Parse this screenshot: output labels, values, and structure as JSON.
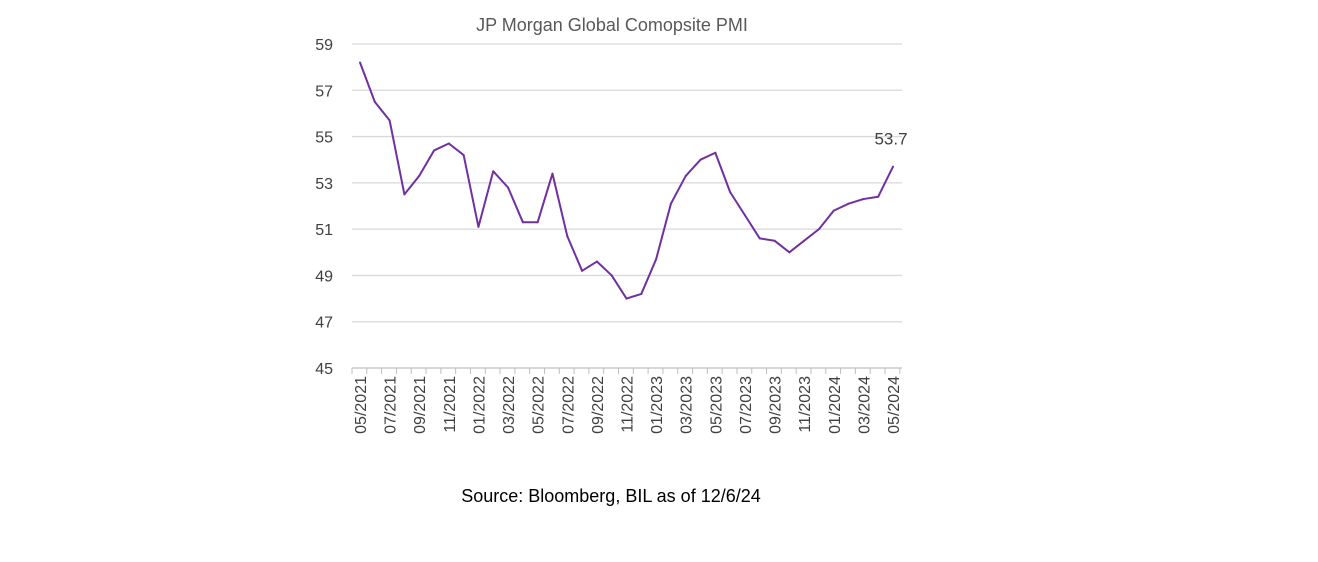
{
  "chart_data": {
    "type": "line",
    "title": "JP Morgan Global Comopsite PMI",
    "xlabel": "",
    "ylabel": "",
    "ylim": [
      45,
      59
    ],
    "yticks": [
      45,
      47,
      49,
      51,
      53,
      55,
      57,
      59
    ],
    "x": [
      "05/2021",
      "06/2021",
      "07/2021",
      "08/2021",
      "09/2021",
      "10/2021",
      "11/2021",
      "12/2021",
      "01/2022",
      "02/2022",
      "03/2022",
      "04/2022",
      "05/2022",
      "06/2022",
      "07/2022",
      "08/2022",
      "09/2022",
      "10/2022",
      "11/2022",
      "12/2022",
      "01/2023",
      "02/2023",
      "03/2023",
      "04/2023",
      "05/2023",
      "06/2023",
      "07/2023",
      "08/2023",
      "09/2023",
      "10/2023",
      "11/2023",
      "12/2023",
      "01/2024",
      "02/2024",
      "03/2024",
      "04/2024",
      "05/2024"
    ],
    "xtick_labels": [
      "05/2021",
      "07/2021",
      "09/2021",
      "11/2021",
      "01/2022",
      "03/2022",
      "05/2022",
      "07/2022",
      "09/2022",
      "11/2022",
      "01/2023",
      "03/2023",
      "05/2023",
      "07/2023",
      "09/2023",
      "11/2023",
      "01/2024",
      "03/2024",
      "05/2024"
    ],
    "series": [
      {
        "values": [
          58.2,
          56.5,
          55.7,
          52.5,
          53.3,
          54.4,
          54.7,
          54.2,
          51.1,
          53.5,
          52.8,
          51.3,
          51.3,
          53.4,
          50.7,
          49.2,
          49.6,
          49.0,
          48.0,
          48.2,
          49.7,
          52.1,
          53.3,
          54.0,
          54.3,
          52.6,
          51.6,
          50.6,
          50.5,
          50.0,
          50.5,
          51.0,
          51.8,
          52.1,
          52.3,
          52.4,
          53.7
        ],
        "color": "#7030A0"
      }
    ],
    "annotations": [
      {
        "text": "53.7",
        "x": "05/2024",
        "y": 53.7
      }
    ],
    "grid": true,
    "legend": "none"
  },
  "footer": {
    "source": "Source: Bloomberg, BIL as of 12/6/24"
  }
}
